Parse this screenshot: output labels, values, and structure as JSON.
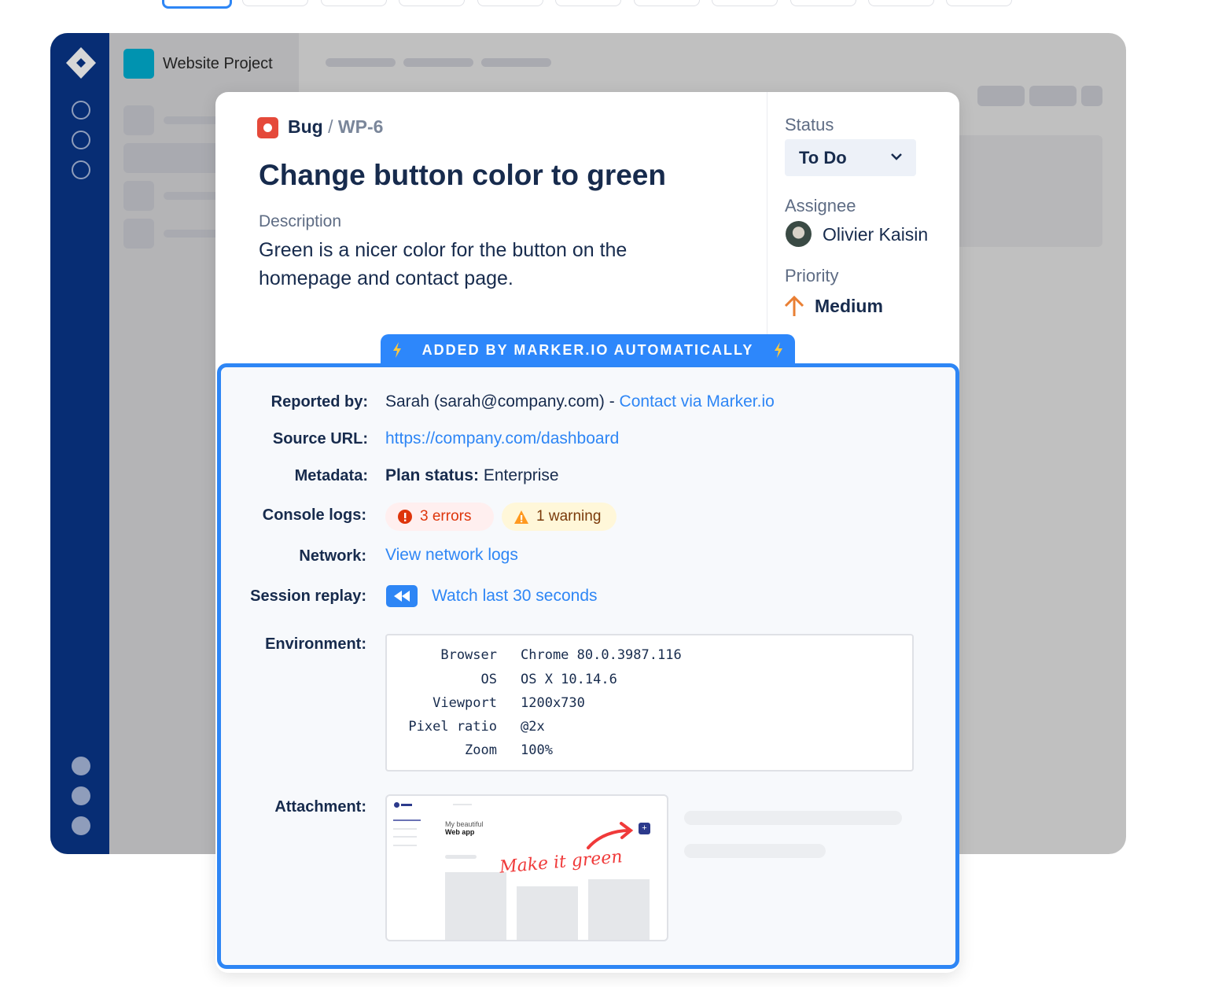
{
  "background_app": {
    "project_name": "Website Project"
  },
  "issue": {
    "type": "Bug",
    "separator": "/",
    "key": "WP-6",
    "title": "Change button color to green",
    "description_label": "Description",
    "description": "Green is a nicer color for the button on the homepage and contact page."
  },
  "sidebar": {
    "status_label": "Status",
    "status_value": "To Do",
    "assignee_label": "Assignee",
    "assignee_name": "Olivier Kaisin",
    "priority_label": "Priority",
    "priority_value": "Medium"
  },
  "banner": {
    "text": "ADDED BY MARKER.IO AUTOMATICALLY",
    "icon": "lightning-icon"
  },
  "details": {
    "reported_by_label": "Reported by:",
    "reporter": "Sarah (sarah@company.com) -",
    "contact_link": "Contact via Marker.io",
    "source_url_label": "Source URL:",
    "source_url": "https://company.com/dashboard",
    "metadata_label": "Metadata:",
    "metadata_key": "Plan status:",
    "metadata_value": "Enterprise",
    "console_label": "Console logs:",
    "errors": "3 errors",
    "warnings": "1 warning",
    "network_label": "Network:",
    "network_link": "View network logs",
    "session_label": "Session replay:",
    "session_link": "Watch last 30 seconds",
    "environment_label": "Environment:",
    "environment": [
      {
        "k": "Browser",
        "v": "Chrome 80.0.3987.116"
      },
      {
        "k": "OS",
        "v": "OS X 10.14.6"
      },
      {
        "k": "Viewport",
        "v": "1200x730"
      },
      {
        "k": "Pixel ratio",
        "v": "@2x"
      },
      {
        "k": "Zoom",
        "v": "100%"
      }
    ],
    "attachment_label": "Attachment:",
    "attachment": {
      "title_line1": "My beautiful",
      "title_line2": "Web app",
      "annotation": "Make it green"
    }
  },
  "colors": {
    "accent": "#2e86f5",
    "nav": "#072d74",
    "bug": "#e5493a",
    "priority": "#e97f33",
    "error": "#de350b",
    "warning": "#ff991f"
  }
}
